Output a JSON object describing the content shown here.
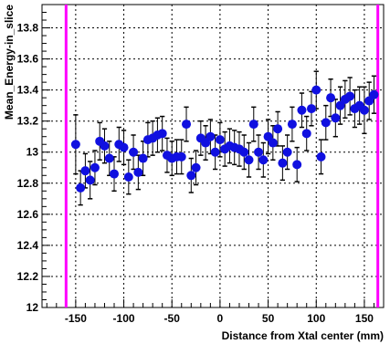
{
  "chart_data": {
    "type": "scatter",
    "xlabel": "Distance from Xtal center (mm)",
    "ylabel": "Mean_Energy-in_slice",
    "xlim": [
      -185,
      170
    ],
    "ylim": [
      12.0,
      13.95
    ],
    "x_ticks": [
      -150,
      -100,
      -50,
      0,
      50,
      100,
      150
    ],
    "y_ticks": [
      12,
      12.2,
      12.4,
      12.6,
      12.8,
      13,
      13.2,
      13.4,
      13.6,
      13.8
    ],
    "grid": true,
    "vertical_lines": [
      -160,
      164
    ],
    "colors": {
      "markers": "#1010e0",
      "vertical_lines": "#ff00ff",
      "grid": "#000000"
    },
    "series": [
      {
        "x": [
          -150,
          -145,
          -140,
          -135,
          -130,
          -125,
          -120,
          -115,
          -110,
          -105,
          -100,
          -95,
          -90,
          -85,
          -80,
          -75,
          -70,
          -65,
          -60,
          -55,
          -50,
          -45,
          -40,
          -35,
          -30,
          -25,
          -20,
          -15,
          -10,
          -5,
          0,
          5,
          10,
          15,
          20,
          25,
          30,
          35,
          40,
          45,
          50,
          55,
          60,
          65,
          70,
          75,
          80,
          85,
          90,
          95,
          100,
          105,
          110,
          115,
          120,
          125,
          130,
          135,
          140,
          145,
          150,
          155,
          160
        ],
        "y": [
          13.05,
          12.77,
          12.88,
          12.82,
          12.9,
          13.07,
          13.04,
          12.96,
          12.86,
          13.05,
          13.03,
          12.84,
          13.0,
          12.87,
          12.96,
          13.08,
          13.09,
          13.11,
          13.12,
          12.98,
          12.96,
          12.97,
          12.97,
          13.18,
          12.85,
          12.9,
          13.09,
          13.06,
          13.1,
          13.0,
          13.08,
          13.02,
          13.04,
          13.03,
          13.02,
          13.0,
          12.95,
          13.18,
          13.0,
          12.95,
          13.1,
          13.06,
          13.15,
          12.93,
          13.0,
          13.18,
          12.92,
          13.27,
          13.12,
          13.28,
          13.4,
          12.97,
          13.19,
          13.35,
          13.22,
          13.3,
          13.34,
          13.36,
          13.28,
          13.3,
          13.27,
          13.33,
          13.37
        ],
        "error": [
          0.19,
          0.11,
          0.11,
          0.12,
          0.11,
          0.12,
          0.11,
          0.11,
          0.11,
          0.11,
          0.11,
          0.11,
          0.11,
          0.11,
          0.11,
          0.11,
          0.11,
          0.11,
          0.11,
          0.11,
          0.11,
          0.11,
          0.11,
          0.11,
          0.11,
          0.11,
          0.11,
          0.11,
          0.11,
          0.11,
          0.11,
          0.11,
          0.11,
          0.11,
          0.11,
          0.11,
          0.11,
          0.11,
          0.11,
          0.11,
          0.11,
          0.11,
          0.11,
          0.11,
          0.11,
          0.11,
          0.11,
          0.11,
          0.11,
          0.11,
          0.12,
          0.11,
          0.11,
          0.12,
          0.12,
          0.12,
          0.12,
          0.12,
          0.12,
          0.12,
          0.15,
          0.12,
          0.12
        ]
      }
    ]
  }
}
